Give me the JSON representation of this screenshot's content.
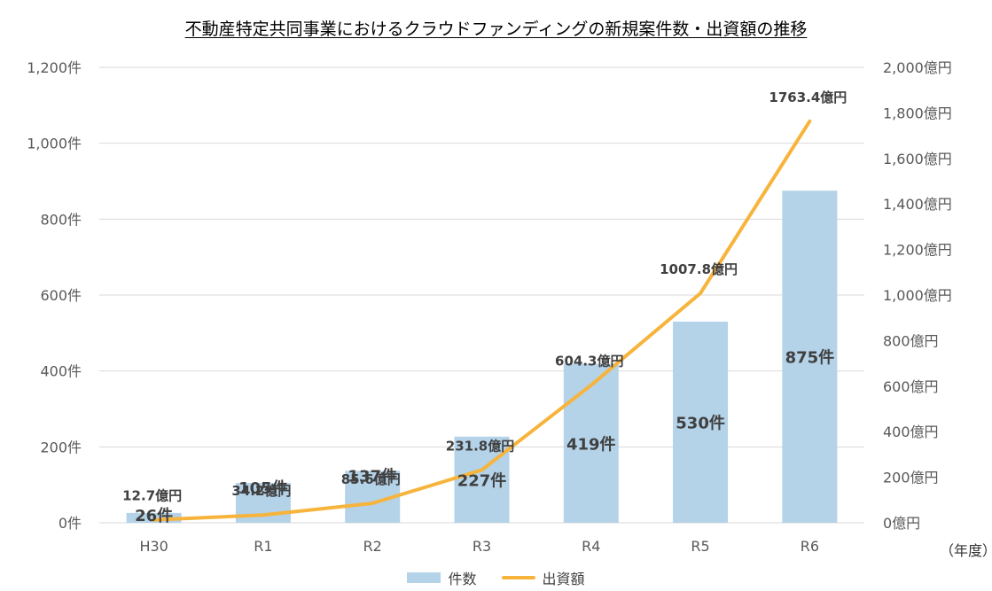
{
  "title": "不動産特定共同事業におけるクラウドファンディングの新規案件数・出資額の推移",
  "unit_note": "（年度）",
  "colors": {
    "bar": "#b4d2e8",
    "line": "#f7b43c",
    "grid": "#d9d9d9",
    "axis_text": "#595959",
    "label_text": "#404040"
  },
  "chart_data": {
    "type": "bar",
    "categories": [
      "H30",
      "R1",
      "R2",
      "R3",
      "R4",
      "R5",
      "R6"
    ],
    "series": [
      {
        "name": "件数",
        "type": "bar",
        "axis": "left",
        "values": [
          26,
          105,
          137,
          227,
          419,
          530,
          875
        ],
        "data_labels": [
          "26件",
          "105件",
          "137件",
          "227件",
          "419件",
          "530件",
          "875件"
        ]
      },
      {
        "name": "出資額",
        "type": "line",
        "axis": "right",
        "values": [
          12.7,
          34.2,
          85.6,
          231.8,
          604.3,
          1007.8,
          1763.4
        ],
        "data_labels": [
          "12.7億円",
          "34.2億円",
          "85.6億円",
          "231.8億円",
          "604.3億円",
          "1007.8億円",
          "1763.4億円"
        ]
      }
    ],
    "y_left": {
      "ylim": [
        0,
        1200
      ],
      "ticks": [
        0,
        200,
        400,
        600,
        800,
        1000,
        1200
      ],
      "tick_labels": [
        "0件",
        "200件",
        "400件",
        "600件",
        "800件",
        "1,000件",
        "1,200件"
      ]
    },
    "y_right": {
      "ylim": [
        0,
        2000
      ],
      "ticks": [
        0,
        200,
        400,
        600,
        800,
        1000,
        1200,
        1400,
        1600,
        1800,
        2000
      ],
      "tick_labels": [
        "0億円",
        "200億円",
        "400億円",
        "600億円",
        "800億円",
        "1,000億円",
        "1,200億円",
        "1,400億円",
        "1,600億円",
        "1,800億円",
        "2,000億円"
      ]
    },
    "grid": true,
    "legend_position": "bottom"
  }
}
